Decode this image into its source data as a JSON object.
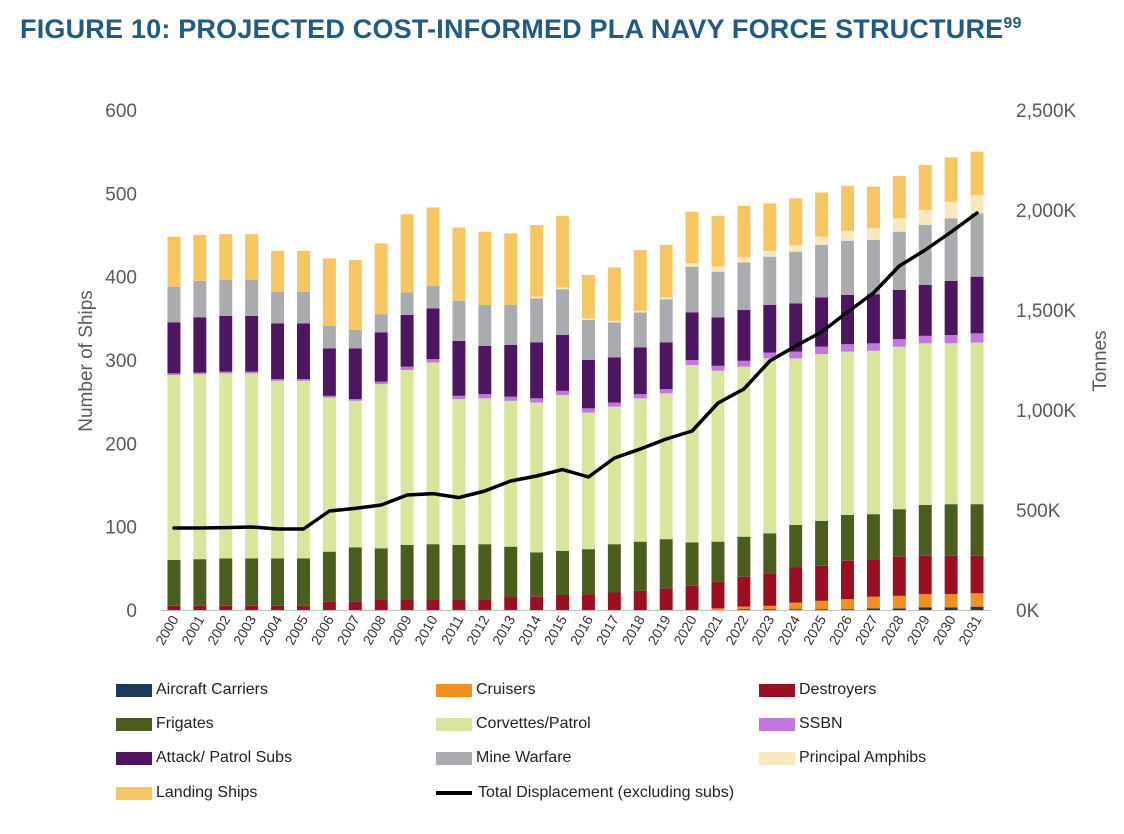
{
  "title": "FIGURE 10: PROJECTED COST-INFORMED PLA NAVY FORCE STRUCTURE",
  "title_sup": "99",
  "chart_data": {
    "type": "bar",
    "stacked": true,
    "categories": [
      "2000",
      "2001",
      "2002",
      "2003",
      "2004",
      "2005",
      "2006",
      "2007",
      "2008",
      "2009",
      "2010",
      "2011",
      "2012",
      "2013",
      "2014",
      "2015",
      "2016",
      "2017",
      "2018",
      "2019",
      "2020",
      "2021",
      "2022",
      "2023",
      "2024",
      "2025",
      "2026",
      "2027",
      "2028",
      "2029",
      "2030",
      "2031"
    ],
    "ylabel": "Number of Ships",
    "y2label": "Tonnes",
    "ylim": [
      0,
      600
    ],
    "y_ticks": [
      "0",
      "100",
      "200",
      "300",
      "400",
      "500",
      "600"
    ],
    "y2lim": [
      0,
      2500000
    ],
    "y2_ticks": [
      "0K",
      "500K",
      "1,000K",
      "1,500K",
      "2,000K",
      "2,500K"
    ],
    "series": [
      {
        "name": "Aircraft Carriers",
        "color": "#1b3a5c",
        "values": [
          0,
          0,
          0,
          0,
          0,
          0,
          0,
          0,
          0,
          0,
          0,
          0,
          0,
          0,
          0,
          0,
          0,
          0,
          0,
          0,
          0,
          0,
          1,
          1,
          1,
          1,
          1,
          2,
          2,
          3,
          3,
          4
        ]
      },
      {
        "name": "Cruisers",
        "color": "#f0901e",
        "values": [
          0,
          0,
          0,
          0,
          0,
          0,
          0,
          0,
          0,
          0,
          0,
          0,
          0,
          0,
          0,
          0,
          0,
          0,
          0,
          0,
          0,
          2,
          3,
          4,
          8,
          10,
          12,
          14,
          15,
          16,
          16,
          16
        ]
      },
      {
        "name": "Destroyers",
        "color": "#9c0f22",
        "values": [
          5,
          5,
          5,
          5,
          5,
          5,
          10,
          10,
          12,
          12,
          12,
          12,
          13,
          15,
          16,
          18,
          19,
          21,
          23,
          26,
          29,
          32,
          36,
          39,
          42,
          42,
          46,
          45,
          47,
          46,
          46,
          45
        ]
      },
      {
        "name": "Frigates",
        "color": "#4a5d1c",
        "values": [
          55,
          56,
          57,
          57,
          57,
          57,
          60,
          65,
          62,
          66,
          67,
          66,
          66,
          61,
          53,
          53,
          54,
          58,
          59,
          59,
          52,
          48,
          48,
          48,
          51,
          54,
          55,
          54,
          57,
          61,
          62,
          62
        ]
      },
      {
        "name": "Corvettes/Patrol",
        "color": "#d8e59a",
        "values": [
          222,
          222,
          222,
          222,
          213,
          213,
          185,
          176,
          197,
          210,
          218,
          175,
          175,
          175,
          180,
          187,
          164,
          165,
          172,
          175,
          213,
          205,
          204,
          210,
          200,
          200,
          196,
          196,
          195,
          194,
          193,
          194
        ]
      },
      {
        "name": "SSBN",
        "color": "#c277e0",
        "values": [
          2,
          2,
          2,
          2,
          2,
          2,
          2,
          2,
          3,
          4,
          4,
          4,
          5,
          5,
          5,
          5,
          5,
          5,
          5,
          5,
          6,
          6,
          7,
          7,
          8,
          9,
          9,
          9,
          9,
          9,
          10,
          11
        ]
      },
      {
        "name": "Attack/ Patrol Subs",
        "color": "#4e1561",
        "values": [
          61,
          66,
          67,
          67,
          67,
          67,
          57,
          61,
          59,
          62,
          61,
          66,
          58,
          62,
          67,
          67,
          58,
          54,
          56,
          56,
          57,
          58,
          61,
          57,
          58,
          59,
          59,
          59,
          59,
          61,
          65,
          68
        ]
      },
      {
        "name": "Mine Warfare",
        "color": "#a9abae",
        "values": [
          43,
          44,
          43,
          43,
          38,
          38,
          27,
          22,
          22,
          27,
          27,
          48,
          49,
          48,
          53,
          55,
          48,
          42,
          42,
          52,
          55,
          55,
          57,
          58,
          62,
          63,
          65,
          65,
          70,
          72,
          75,
          76
        ]
      },
      {
        "name": "Principal Amphibs",
        "color": "#f9e8bd",
        "values": [
          0,
          0,
          0,
          0,
          0,
          0,
          0,
          0,
          0,
          0,
          0,
          0,
          0,
          0,
          2,
          2,
          2,
          2,
          2,
          2,
          4,
          6,
          6,
          7,
          8,
          10,
          12,
          14,
          16,
          18,
          20,
          22
        ]
      },
      {
        "name": "Landing Ships",
        "color": "#f6c660",
        "values": [
          60,
          55,
          55,
          55,
          49,
          49,
          81,
          84,
          85,
          94,
          94,
          88,
          88,
          86,
          86,
          86,
          52,
          64,
          73,
          63,
          62,
          61,
          62,
          57,
          56,
          53,
          54,
          50,
          51,
          54,
          53,
          52
        ]
      }
    ],
    "line": {
      "name": "Total Displacement (excluding subs)",
      "axis": "y2",
      "color": "#000000",
      "values": [
        410000,
        410000,
        412000,
        415000,
        405000,
        405000,
        495000,
        508000,
        525000,
        575000,
        582000,
        562000,
        595000,
        645000,
        670000,
        702000,
        665000,
        760000,
        805000,
        855000,
        895000,
        1035000,
        1105000,
        1245000,
        1320000,
        1390000,
        1490000,
        1585000,
        1720000,
        1800000,
        1890000,
        1985000
      ]
    },
    "legend_position": "bottom",
    "grid": false
  }
}
